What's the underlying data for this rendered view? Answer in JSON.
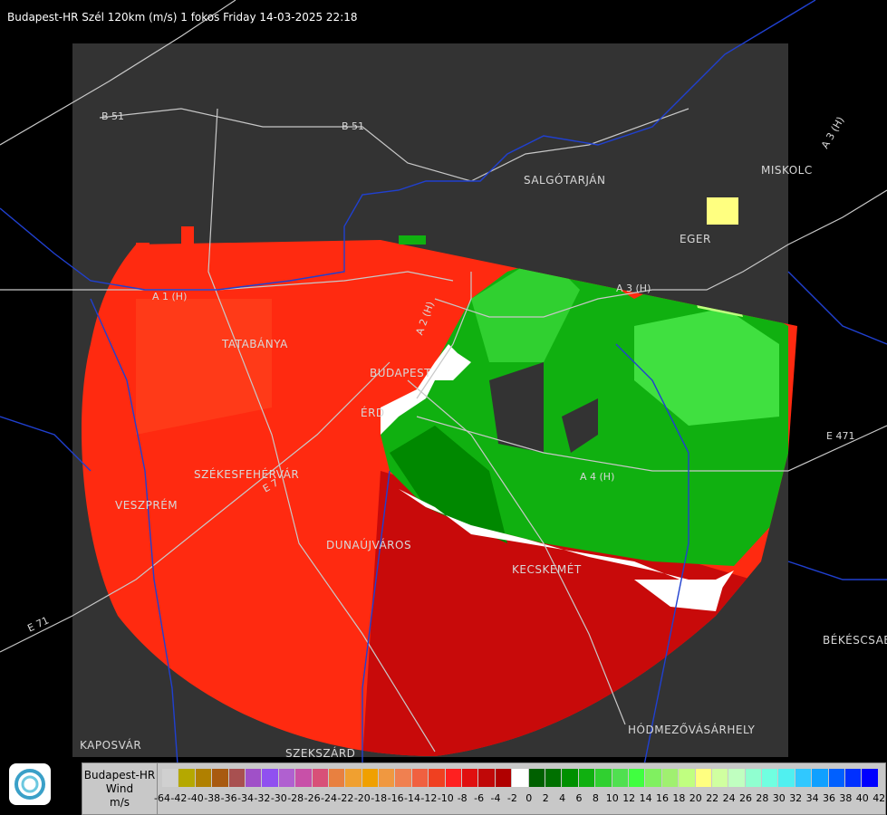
{
  "title": "Budapest-HR Szél 120km (m/s) 1 fokos Friday 14-03-2025 22:18",
  "legend": {
    "line1": "Budapest-HR",
    "line2": "Wind",
    "line3": "m/s",
    "colors": [
      "#d0d0d0",
      "#b5a800",
      "#b08000",
      "#a85a10",
      "#a85050",
      "#a050c8",
      "#9050f0",
      "#b060d0",
      "#c850a8",
      "#d85078",
      "#e88040",
      "#f0a030",
      "#f0a000",
      "#f09840",
      "#f08050",
      "#f06040",
      "#f04020",
      "#ff2020",
      "#e01010",
      "#c00808",
      "#b00000",
      "#ffffff",
      "#006000",
      "#007000",
      "#009000",
      "#10b010",
      "#30d030",
      "#50e050",
      "#40ff40",
      "#80f060",
      "#a0f070",
      "#c0ff80",
      "#ffff80",
      "#d0ffa0",
      "#c0ffc0",
      "#90ffd0",
      "#70ffe0",
      "#50f0f0",
      "#30c8ff",
      "#10a0ff",
      "#0060ff",
      "#0030ff",
      "#0000ff"
    ],
    "ticks": [
      "-64",
      "-42",
      "-40",
      "-38",
      "-36",
      "-34",
      "-32",
      "-30",
      "-28",
      "-26",
      "-24",
      "-22",
      "-20",
      "-18",
      "-16",
      "-14",
      "-12",
      "-10",
      "-8",
      "-6",
      "-4",
      "-2",
      "0",
      "2",
      "4",
      "6",
      "8",
      "10",
      "12",
      "14",
      "16",
      "18",
      "20",
      "22",
      "24",
      "26",
      "28",
      "30",
      "32",
      "34",
      "36",
      "38",
      "40",
      "42"
    ],
    "colors_meaning": "wind velocity scale"
  },
  "places": {
    "salgotarjan": "SALGÓTARJÁN",
    "eger": "EGER",
    "miskolc": "MISKOLC",
    "tatabanya": "TATABÁNYA",
    "budapest": "BUDAPEST",
    "erd": "ÉRD",
    "szekesfehervar": "SZÉKESFEHÉRVÁR",
    "veszprem": "VESZPRÉM",
    "dunaujvaros": "DUNAÚJVÁROS",
    "kecskemet": "KECSKEMÉT",
    "bekescsaba": "BÉKÉSCSABA",
    "hodmezovasarhely": "HÓDMEZŐVÁSÁRHELY",
    "kaposvar": "KAPOSVÁR",
    "szekszard": "SZEKSZÁRD"
  },
  "roads": {
    "b51a": "B 51",
    "b51b": "B 51",
    "a3h": "A 3 (H)",
    "a3h2": "A 3 (H)",
    "e71": "E 71",
    "a4h": "A 4 (H)",
    "e471": "E 471",
    "m1": "A 1 (H)",
    "m2": "A 2 (H)",
    "e77": "E 7"
  },
  "colors": {
    "map_bg": "#333333",
    "outside_bg": "#000000",
    "road": "#c8c8c8",
    "border": "#2040d0"
  }
}
